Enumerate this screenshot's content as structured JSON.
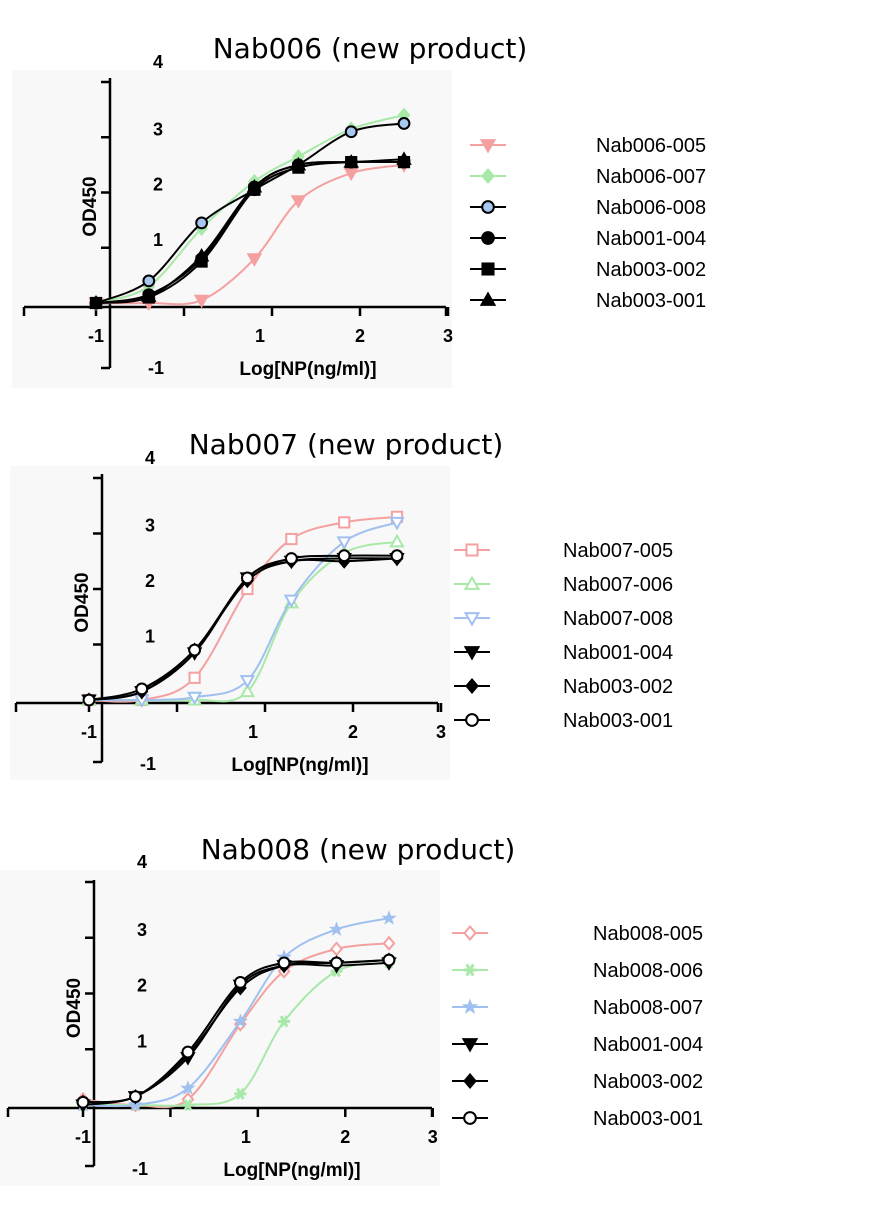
{
  "chart_data": [
    {
      "type": "line",
      "title": "Nab006 (new product)",
      "xlabel": "Log[NP(ng/ml)]",
      "ylabel": "OD450",
      "x_ticks": [
        "-1",
        "1",
        "2",
        "3"
      ],
      "x_extra_tick": "-1",
      "y_ticks": [
        "1",
        "2",
        "3",
        "4"
      ],
      "xlim": [
        -1.1,
        3
      ],
      "ylim": [
        -0.1,
        4
      ],
      "x": [
        -1,
        -0.4,
        0.2,
        0.8,
        1.3,
        1.9,
        2.5
      ],
      "series": [
        {
          "name": "Nab006-005",
          "color": "#f4a0a0",
          "marker": "triangle-down",
          "fill": true,
          "values": [
            0.0,
            0.0,
            0.05,
            0.8,
            1.85,
            2.35,
            2.5
          ]
        },
        {
          "name": "Nab006-007",
          "color": "#a8e8a8",
          "marker": "diamond",
          "fill": true,
          "values": [
            0.0,
            0.3,
            1.35,
            2.2,
            2.65,
            3.15,
            3.4
          ]
        },
        {
          "name": "Nab006-008",
          "color": "#000000",
          "face": "#a8c8f0",
          "marker": "circle",
          "fill": true,
          "values": [
            0.0,
            0.4,
            1.45,
            2.05,
            2.5,
            3.1,
            3.25
          ]
        },
        {
          "name": "Nab001-004",
          "color": "#000000",
          "marker": "circle",
          "fill": true,
          "values": [
            0.0,
            0.15,
            0.8,
            2.1,
            2.5,
            2.55,
            2.55
          ]
        },
        {
          "name": "Nab003-002",
          "color": "#000000",
          "marker": "square",
          "fill": true,
          "values": [
            0.0,
            0.1,
            0.75,
            2.05,
            2.45,
            2.55,
            2.55
          ]
        },
        {
          "name": "Nab003-001",
          "color": "#000000",
          "marker": "triangle-up",
          "fill": true,
          "values": [
            0.0,
            0.12,
            0.85,
            2.1,
            2.5,
            2.55,
            2.6
          ]
        }
      ]
    },
    {
      "type": "line",
      "title": "Nab007 (new product)",
      "xlabel": "Log[NP(ng/ml)]",
      "ylabel": "OD450",
      "x_ticks": [
        "-1",
        "1",
        "2",
        "3"
      ],
      "x_extra_tick": "-1",
      "y_ticks": [
        "1",
        "2",
        "3",
        "4"
      ],
      "xlim": [
        -1.1,
        3
      ],
      "ylim": [
        -0.1,
        4
      ],
      "x": [
        -1,
        -0.4,
        0.2,
        0.8,
        1.3,
        1.9,
        2.5
      ],
      "series": [
        {
          "name": "Nab007-005",
          "color": "#f4a0a0",
          "marker": "square",
          "fill": false,
          "values": [
            0.0,
            0.0,
            0.4,
            2.0,
            2.9,
            3.2,
            3.3
          ]
        },
        {
          "name": "Nab007-006",
          "color": "#a8e8a8",
          "marker": "triangle-up",
          "fill": false,
          "values": [
            0.0,
            0.0,
            0.0,
            0.15,
            1.75,
            2.65,
            2.85
          ]
        },
        {
          "name": "Nab007-008",
          "color": "#a0c0f0",
          "marker": "triangle-down",
          "fill": false,
          "values": [
            0.0,
            0.0,
            0.05,
            0.35,
            1.8,
            2.85,
            3.2
          ]
        },
        {
          "name": "Nab001-004",
          "color": "#000000",
          "marker": "triangle-down",
          "fill": true,
          "values": [
            0.0,
            0.15,
            0.85,
            2.2,
            2.5,
            2.55,
            2.55
          ]
        },
        {
          "name": "Nab003-002",
          "color": "#000000",
          "marker": "diamond",
          "fill": true,
          "values": [
            0.0,
            0.15,
            0.9,
            2.15,
            2.5,
            2.5,
            2.55
          ]
        },
        {
          "name": "Nab003-001",
          "color": "#000000",
          "marker": "circle",
          "fill": false,
          "values": [
            0.0,
            0.2,
            0.9,
            2.2,
            2.55,
            2.6,
            2.6
          ]
        }
      ]
    },
    {
      "type": "line",
      "title": "Nab008 (new product)",
      "xlabel": "Log[NP(ng/ml)]",
      "ylabel": "OD450",
      "x_ticks": [
        "-1",
        "1",
        "2",
        "3"
      ],
      "x_extra_tick": "-1",
      "y_ticks": [
        "1",
        "2",
        "3",
        "4"
      ],
      "xlim": [
        -1.1,
        3
      ],
      "ylim": [
        -0.1,
        4
      ],
      "x": [
        -1,
        -0.4,
        0.2,
        0.8,
        1.3,
        1.9,
        2.5
      ],
      "series": [
        {
          "name": "Nab008-005",
          "color": "#f4a0a0",
          "marker": "diamond",
          "fill": false,
          "values": [
            0.1,
            0.0,
            0.1,
            1.45,
            2.4,
            2.8,
            2.9
          ]
        },
        {
          "name": "Nab008-006",
          "color": "#a8e8a8",
          "marker": "star6",
          "fill": true,
          "values": [
            0.0,
            0.0,
            0.0,
            0.2,
            1.5,
            2.4,
            2.55
          ]
        },
        {
          "name": "Nab008-007",
          "color": "#a0c0f0",
          "marker": "star5",
          "fill": true,
          "values": [
            0.0,
            0.0,
            0.3,
            1.5,
            2.65,
            3.15,
            3.35
          ]
        },
        {
          "name": "Nab001-004",
          "color": "#000000",
          "marker": "triangle-down",
          "fill": true,
          "values": [
            0.0,
            0.15,
            0.85,
            2.15,
            2.5,
            2.5,
            2.55
          ]
        },
        {
          "name": "Nab003-002",
          "color": "#000000",
          "marker": "diamond",
          "fill": true,
          "values": [
            0.05,
            0.15,
            0.9,
            2.1,
            2.5,
            2.55,
            2.6
          ]
        },
        {
          "name": "Nab003-001",
          "color": "#000000",
          "marker": "circle",
          "fill": false,
          "values": [
            0.05,
            0.15,
            0.95,
            2.2,
            2.55,
            2.55,
            2.6
          ]
        }
      ]
    }
  ]
}
